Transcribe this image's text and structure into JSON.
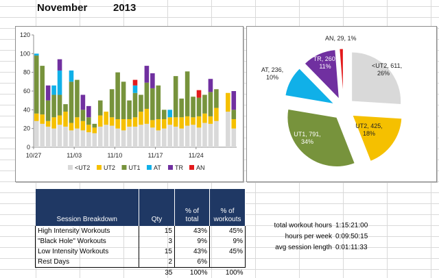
{
  "header": {
    "month": "November",
    "year": "2013"
  },
  "colors": {
    "<UT2": "#d9d9d9",
    "UT2": "#f5c000",
    "UT1": "#77933c",
    "AT": "#10b0e8",
    "TR": "#7030a0",
    "AN": "#e31a1c",
    "table_header": "#1f3864"
  },
  "chart_data": [
    {
      "type": "bar",
      "stacked": true,
      "ylim": [
        0,
        120
      ],
      "yticks": [
        0,
        20,
        40,
        60,
        80,
        100,
        120
      ],
      "xticks": [
        "10/27",
        "11/03",
        "11/10",
        "11/17",
        "11/24"
      ],
      "legend": [
        "<UT2",
        "UT2",
        "UT1",
        "AT",
        "TR",
        "AN"
      ],
      "legend_position": "bottom",
      "grid": false,
      "categories": [
        "10/27",
        "10/28",
        "10/29",
        "10/30",
        "10/31",
        "11/01",
        "11/02",
        "11/03",
        "11/04",
        "11/05",
        "11/06",
        "11/07",
        "11/08",
        "11/09",
        "11/10",
        "11/11",
        "11/12",
        "11/13",
        "11/14",
        "11/15",
        "11/16",
        "11/17",
        "11/18",
        "11/19",
        "11/20",
        "11/21",
        "11/22",
        "11/23",
        "11/24",
        "11/25",
        "11/26",
        "11/27",
        "11/28",
        "11/29",
        "11/30"
      ],
      "series": [
        {
          "name": "<UT2",
          "values": [
            28,
            25,
            22,
            20,
            24,
            22,
            18,
            20,
            18,
            16,
            15,
            22,
            24,
            23,
            20,
            18,
            22,
            22,
            24,
            25,
            21,
            18,
            20,
            24,
            22,
            20,
            23,
            24,
            21,
            26,
            25,
            28,
            0,
            38,
            20
          ]
        },
        {
          "name": "UT2",
          "values": [
            8,
            10,
            6,
            12,
            10,
            16,
            8,
            12,
            10,
            8,
            6,
            12,
            14,
            9,
            10,
            12,
            8,
            10,
            14,
            16,
            8,
            12,
            10,
            8,
            10,
            12,
            10,
            8,
            12,
            10,
            8,
            14,
            0,
            20,
            10
          ]
        },
        {
          "name": "UT1",
          "values": [
            62,
            52,
            22,
            24,
            22,
            8,
            44,
            40,
            12,
            8,
            4,
            16,
            0,
            30,
            50,
            40,
            20,
            26,
            18,
            28,
            34,
            36,
            10,
            0,
            44,
            20,
            48,
            22,
            20,
            20,
            26,
            20,
            0,
            0,
            10
          ]
        },
        {
          "name": "AT",
          "values": [
            2,
            0,
            0,
            10,
            26,
            0,
            12,
            0,
            0,
            0,
            0,
            0,
            0,
            0,
            0,
            0,
            0,
            8,
            0,
            0,
            0,
            0,
            0,
            8,
            0,
            0,
            0,
            0,
            0,
            0,
            0,
            0,
            0,
            0,
            0
          ]
        },
        {
          "name": "TR",
          "values": [
            0,
            0,
            16,
            0,
            12,
            0,
            0,
            0,
            16,
            12,
            0,
            0,
            0,
            0,
            0,
            0,
            0,
            0,
            0,
            18,
            16,
            0,
            0,
            0,
            0,
            0,
            0,
            0,
            0,
            0,
            14,
            0,
            0,
            0,
            20
          ]
        },
        {
          "name": "AN",
          "values": [
            0,
            0,
            0,
            0,
            0,
            0,
            0,
            0,
            0,
            0,
            0,
            0,
            0,
            0,
            0,
            0,
            0,
            6,
            0,
            0,
            0,
            0,
            0,
            0,
            0,
            0,
            0,
            0,
            8,
            0,
            0,
            0,
            0,
            0,
            0
          ]
        }
      ]
    },
    {
      "type": "pie",
      "slices": [
        {
          "name": "<UT2",
          "value": 611,
          "label": "<UT2, 611, 26%"
        },
        {
          "name": "UT2",
          "value": 425,
          "label": "UT2, 425, 18%"
        },
        {
          "name": "UT1",
          "value": 791,
          "label": "UT1, 791, 34%"
        },
        {
          "name": "AT",
          "value": 236,
          "label": "AT, 236, 10%"
        },
        {
          "name": "TR",
          "value": 260,
          "label": "TR, 260, 11%"
        },
        {
          "name": "AN",
          "value": 29,
          "label": "AN, 29, 1%"
        }
      ]
    }
  ],
  "table": {
    "headers": [
      "Session Breakdown",
      "Qty",
      "% of total",
      "% of workouts"
    ],
    "rows": [
      {
        "label": "High Intensity Workouts",
        "qty": "15",
        "pct_total": "43%",
        "pct_workouts": "45%"
      },
      {
        "label": "\"Black Hole\" Workouts",
        "qty": "3",
        "pct_total": "9%",
        "pct_workouts": "9%"
      },
      {
        "label": "Low Intensity Workouts",
        "qty": "15",
        "pct_total": "43%",
        "pct_workouts": "45%"
      },
      {
        "label": "Rest Days",
        "qty": "2",
        "pct_total": "6%",
        "pct_workouts": ""
      }
    ],
    "totals": {
      "qty": "35",
      "pct_total": "100%",
      "pct_workouts": "100%"
    }
  },
  "stats": [
    {
      "label": "total workout hours",
      "value": "1:15:21:00"
    },
    {
      "label": "hours per week",
      "value": "0:09:50:15"
    },
    {
      "label": "avg session length",
      "value": "0:01:11:33"
    }
  ]
}
